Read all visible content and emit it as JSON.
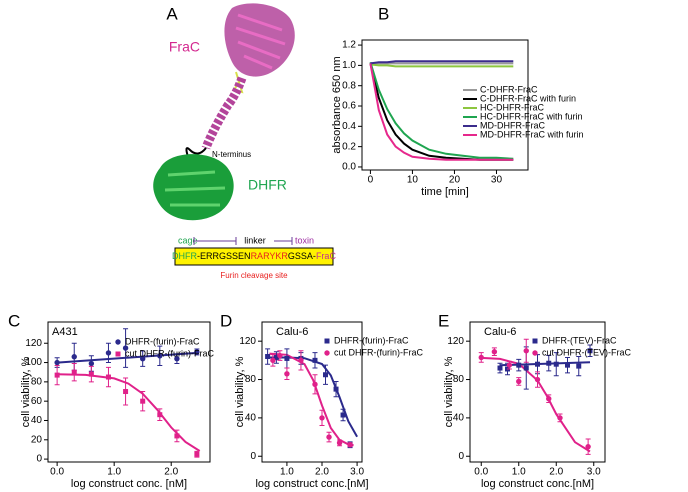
{
  "diagram": {
    "panel": "A",
    "toxin_label": "FraC",
    "n_terminus": "N-terminus",
    "cage_label": "DHFR",
    "scheme": {
      "cage": "cage",
      "linker": "linker",
      "toxin": "toxin",
      "sequence": [
        "DHFR",
        "-ERRGSSEN",
        "RARYKR",
        "GSSA-",
        "FraC"
      ],
      "caption": "Furin cleavage site"
    }
  },
  "chart_data": [
    {
      "panel": "B",
      "type": "line",
      "xlabel": "time [min]",
      "ylabel": "absorbance 650 nm",
      "x": [
        0,
        2,
        4,
        6,
        8,
        10,
        14,
        18,
        22,
        26,
        30,
        34
      ],
      "series": [
        {
          "name": "C-DHFR-FraC",
          "color": "#9a9a9a",
          "values": [
            1.02,
            1.02,
            1.02,
            1.02,
            1.02,
            1.02,
            1.02,
            1.02,
            1.02,
            1.02,
            1.02,
            1.02
          ]
        },
        {
          "name": "C-DHFR-FraC with furin",
          "color": "#000000",
          "values": [
            1.02,
            0.68,
            0.46,
            0.32,
            0.23,
            0.17,
            0.11,
            0.09,
            0.08,
            0.07,
            0.07,
            0.07
          ]
        },
        {
          "name": "HC-DHFR-FraC",
          "color": "#8dc63f",
          "values": [
            1.01,
            1.0,
            1.0,
            0.99,
            0.99,
            0.99,
            0.99,
            0.99,
            0.99,
            0.99,
            0.99,
            0.99
          ]
        },
        {
          "name": "HC-DHFR-FraC with furin",
          "color": "#1fa550",
          "values": [
            1.03,
            0.76,
            0.57,
            0.43,
            0.33,
            0.26,
            0.17,
            0.13,
            0.11,
            0.09,
            0.09,
            0.08
          ]
        },
        {
          "name": "MD-DHFR-FraC",
          "color": "#3b2c8c",
          "values": [
            1.02,
            1.03,
            1.03,
            1.04,
            1.04,
            1.04,
            1.04,
            1.04,
            1.04,
            1.04,
            1.04,
            1.04
          ]
        },
        {
          "name": "MD-DHFR-FraC with furin",
          "color": "#e6288c",
          "values": [
            1.02,
            0.56,
            0.32,
            0.2,
            0.14,
            0.1,
            0.08,
            0.07,
            0.07,
            0.07,
            0.07,
            0.07
          ]
        }
      ],
      "xlim": [
        -2,
        37.5
      ],
      "ylim": [
        -0.03,
        1.25
      ],
      "xticks": [
        0,
        10,
        20,
        30
      ],
      "yticks": [
        {
          "value": 0,
          "label": "0.0"
        },
        0.2,
        0.4,
        0.6,
        0.8,
        {
          "value": 1,
          "label": "1.0"
        },
        1.2
      ]
    },
    {
      "panel": "C",
      "type": "scatter",
      "title": "A431",
      "xlabel": "log construct conc. [nM]",
      "ylabel": "cell viability, %",
      "series": [
        {
          "name": "DHFR-(furin)-FraC",
          "color": "#2b2a8c",
          "marker": "circle",
          "x": [
            0,
            0.3,
            0.6,
            0.9,
            1.2,
            1.5,
            1.8,
            2.1,
            2.45
          ],
          "values": [
            100,
            106,
            99,
            110,
            115,
            104,
            107,
            104,
            111
          ],
          "errors": [
            5,
            14,
            8,
            10,
            20,
            8,
            10,
            5,
            3
          ]
        },
        {
          "name": "cut DHFR-(furin)-FraC",
          "color": "#e0218a",
          "marker": "square",
          "x": [
            0,
            0.3,
            0.6,
            0.9,
            1.2,
            1.5,
            1.8,
            2.1,
            2.45
          ],
          "values": [
            87,
            90,
            88,
            85,
            70,
            60,
            46,
            24,
            5
          ],
          "errors": [
            10,
            9,
            8,
            10,
            14,
            10,
            6,
            6,
            3
          ]
        }
      ],
      "fits": [
        {
          "color": "#2b2a8c",
          "x": [
            0,
            2.45
          ],
          "values": [
            100,
            110
          ]
        },
        {
          "color": "#e0218a",
          "x": [
            0,
            0.5,
            1,
            1.25,
            1.5,
            1.75,
            2,
            2.25,
            2.5
          ],
          "values": [
            87.9,
            87.2,
            83.6,
            78.2,
            67.7,
            51.5,
            32.8,
            17.7,
            8.4
          ]
        }
      ],
      "xlim": [
        -0.16,
        2.68
      ],
      "ylim": [
        -3,
        142
      ],
      "xticks": [
        {
          "value": 0,
          "label": "0.0"
        },
        {
          "value": 1,
          "label": "1.0"
        },
        {
          "value": 2,
          "label": "2.0"
        }
      ],
      "yticks": [
        0,
        20,
        40,
        60,
        80,
        100,
        120
      ]
    },
    {
      "panel": "D",
      "type": "scatter",
      "title": "Calu-6",
      "xlabel": "log construct conc.[nM]",
      "ylabel": "cell viability, %",
      "series": [
        {
          "name": "DHFR-(furin)-FraC",
          "color": "#2b2a8c",
          "marker": "square",
          "x": [
            0.45,
            0.7,
            1,
            1.4,
            1.8,
            2.1,
            2.4,
            2.6,
            2.8
          ],
          "values": [
            104,
            103,
            102,
            102,
            100,
            85,
            70,
            43,
            12
          ],
          "errors": [
            8,
            6,
            10,
            6,
            8,
            10,
            8,
            6,
            3
          ]
        },
        {
          "name": "cut DHFR-(furin)-FraC",
          "color": "#e0218a",
          "marker": "circle",
          "x": [
            0.6,
            0.8,
            1,
            1.4,
            1.8,
            2,
            2.2,
            2.5,
            2.8
          ],
          "values": [
            100,
            105,
            86,
            100,
            75,
            40,
            20,
            14,
            12
          ],
          "errors": [
            6,
            5,
            6,
            10,
            10,
            8,
            5,
            3,
            2
          ]
        }
      ],
      "fits": [
        {
          "color": "#2b2a8c",
          "x": [
            0.5,
            1,
            1.5,
            2,
            2.25,
            2.5,
            2.75,
            3
          ],
          "values": [
            103,
            103,
            102.3,
            96.2,
            84.3,
            61.8,
            36.5,
            20.4
          ]
        },
        {
          "color": "#e0218a",
          "x": [
            0.5,
            1,
            1.5,
            1.75,
            2,
            2.25,
            2.5,
            2.75,
            2.9
          ],
          "values": [
            107,
            105.8,
            96.1,
            79.4,
            52.9,
            29.5,
            17.1,
            12.4,
            11.5
          ]
        }
      ],
      "xlim": [
        0.29,
        3.14
      ],
      "ylim": [
        -6,
        140
      ],
      "xticks": [
        {
          "value": 1,
          "label": "1.0"
        },
        {
          "value": 2,
          "label": "2.0"
        },
        {
          "value": 3,
          "label": "3.0"
        }
      ],
      "yticks": [
        0,
        40,
        80,
        120
      ]
    },
    {
      "panel": "E",
      "type": "scatter",
      "title": "Calu-6",
      "xlabel": "log construct conc.[nM]",
      "ylabel": "cell viability, %",
      "series": [
        {
          "name": "DHFR-(TEV)-FraC",
          "color": "#2b2a8c",
          "marker": "square",
          "x": [
            0.5,
            0.7,
            1,
            1.2,
            1.5,
            1.8,
            2,
            2.3,
            2.6,
            2.9
          ],
          "values": [
            92,
            91,
            95,
            92,
            96,
            97,
            96,
            95,
            94,
            110
          ],
          "errors": [
            5,
            6,
            6,
            22,
            10,
            8,
            12,
            8,
            10,
            6
          ]
        },
        {
          "name": "cut DHFR-(TEV)-FraC",
          "color": "#e0218a",
          "marker": "circle",
          "x": [
            0,
            0.35,
            0.75,
            1,
            1.2,
            1.5,
            1.8,
            2.1,
            2.85
          ],
          "values": [
            103,
            109,
            95,
            78,
            110,
            80,
            60,
            40,
            10
          ],
          "errors": [
            5,
            4,
            4,
            4,
            12,
            8,
            4,
            4,
            8
          ]
        }
      ],
      "fits": [
        {
          "color": "#2b2a8c",
          "x": [
            0.5,
            2.9
          ],
          "values": [
            95,
            98
          ]
        },
        {
          "color": "#e0218a",
          "x": [
            0,
            0.5,
            1,
            1.5,
            1.75,
            2,
            2.5,
            2.9
          ],
          "values": [
            102.6,
            101.5,
            96.4,
            79.1,
            62.9,
            43.8,
            14.7,
            4.9
          ]
        }
      ],
      "xlim": [
        -0.3,
        3.3
      ],
      "ylim": [
        -6,
        140
      ],
      "xticks": [
        {
          "value": 0,
          "label": "0.0"
        },
        {
          "value": 1,
          "label": "1.0"
        },
        {
          "value": 2,
          "label": "2.0"
        },
        {
          "value": 3,
          "label": "3.0"
        }
      ],
      "yticks": [
        0,
        40,
        80,
        120
      ]
    }
  ]
}
